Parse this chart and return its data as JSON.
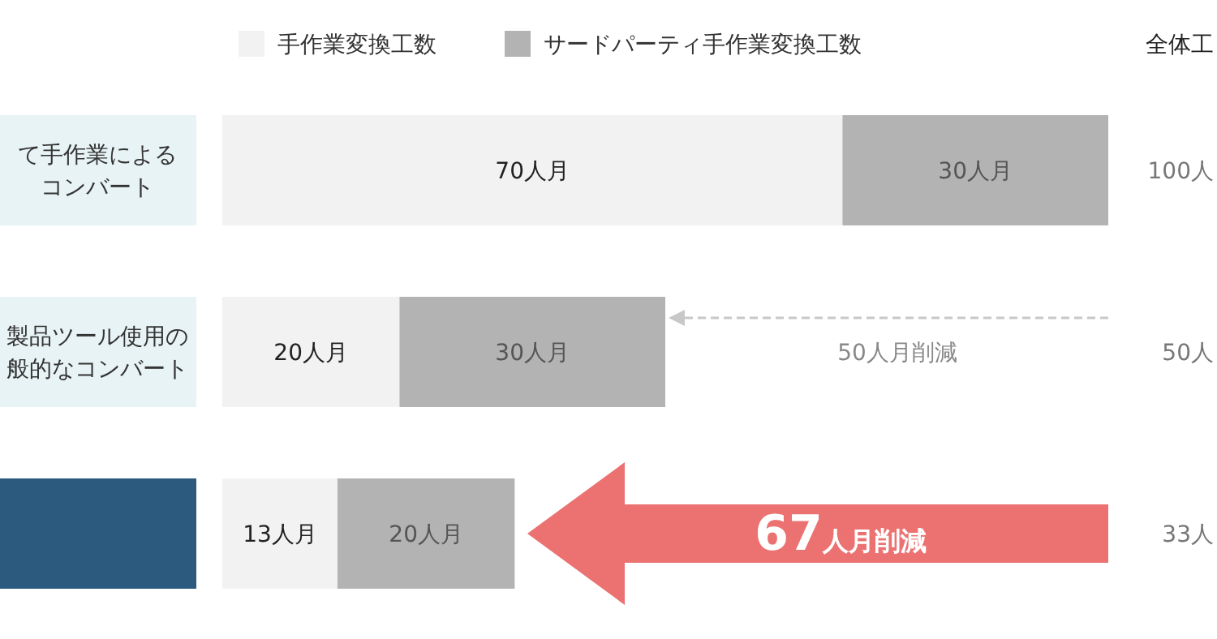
{
  "chart_data": {
    "type": "bar",
    "orientation": "horizontal",
    "stacked": true,
    "legend": "top",
    "categories": [
      "て手作業によるコンバート",
      "製品ツール使用の般的なコンバート",
      null
    ],
    "series": [
      {
        "name": "手作業変換工数",
        "color": "#f2f2f2",
        "values": [
          70,
          20,
          13
        ],
        "value_labels": [
          "70人月",
          "20人月",
          "13人月"
        ]
      },
      {
        "name": "サードパーティ手作業変換工数",
        "color": "#b3b3b3",
        "values": [
          30,
          30,
          20
        ],
        "value_labels": [
          "30人月",
          "30人月",
          "20人月"
        ]
      }
    ],
    "annotations": [
      "全体工",
      "50人月削減",
      "67人月削減",
      "100人",
      "50人",
      "33人"
    ]
  }
}
